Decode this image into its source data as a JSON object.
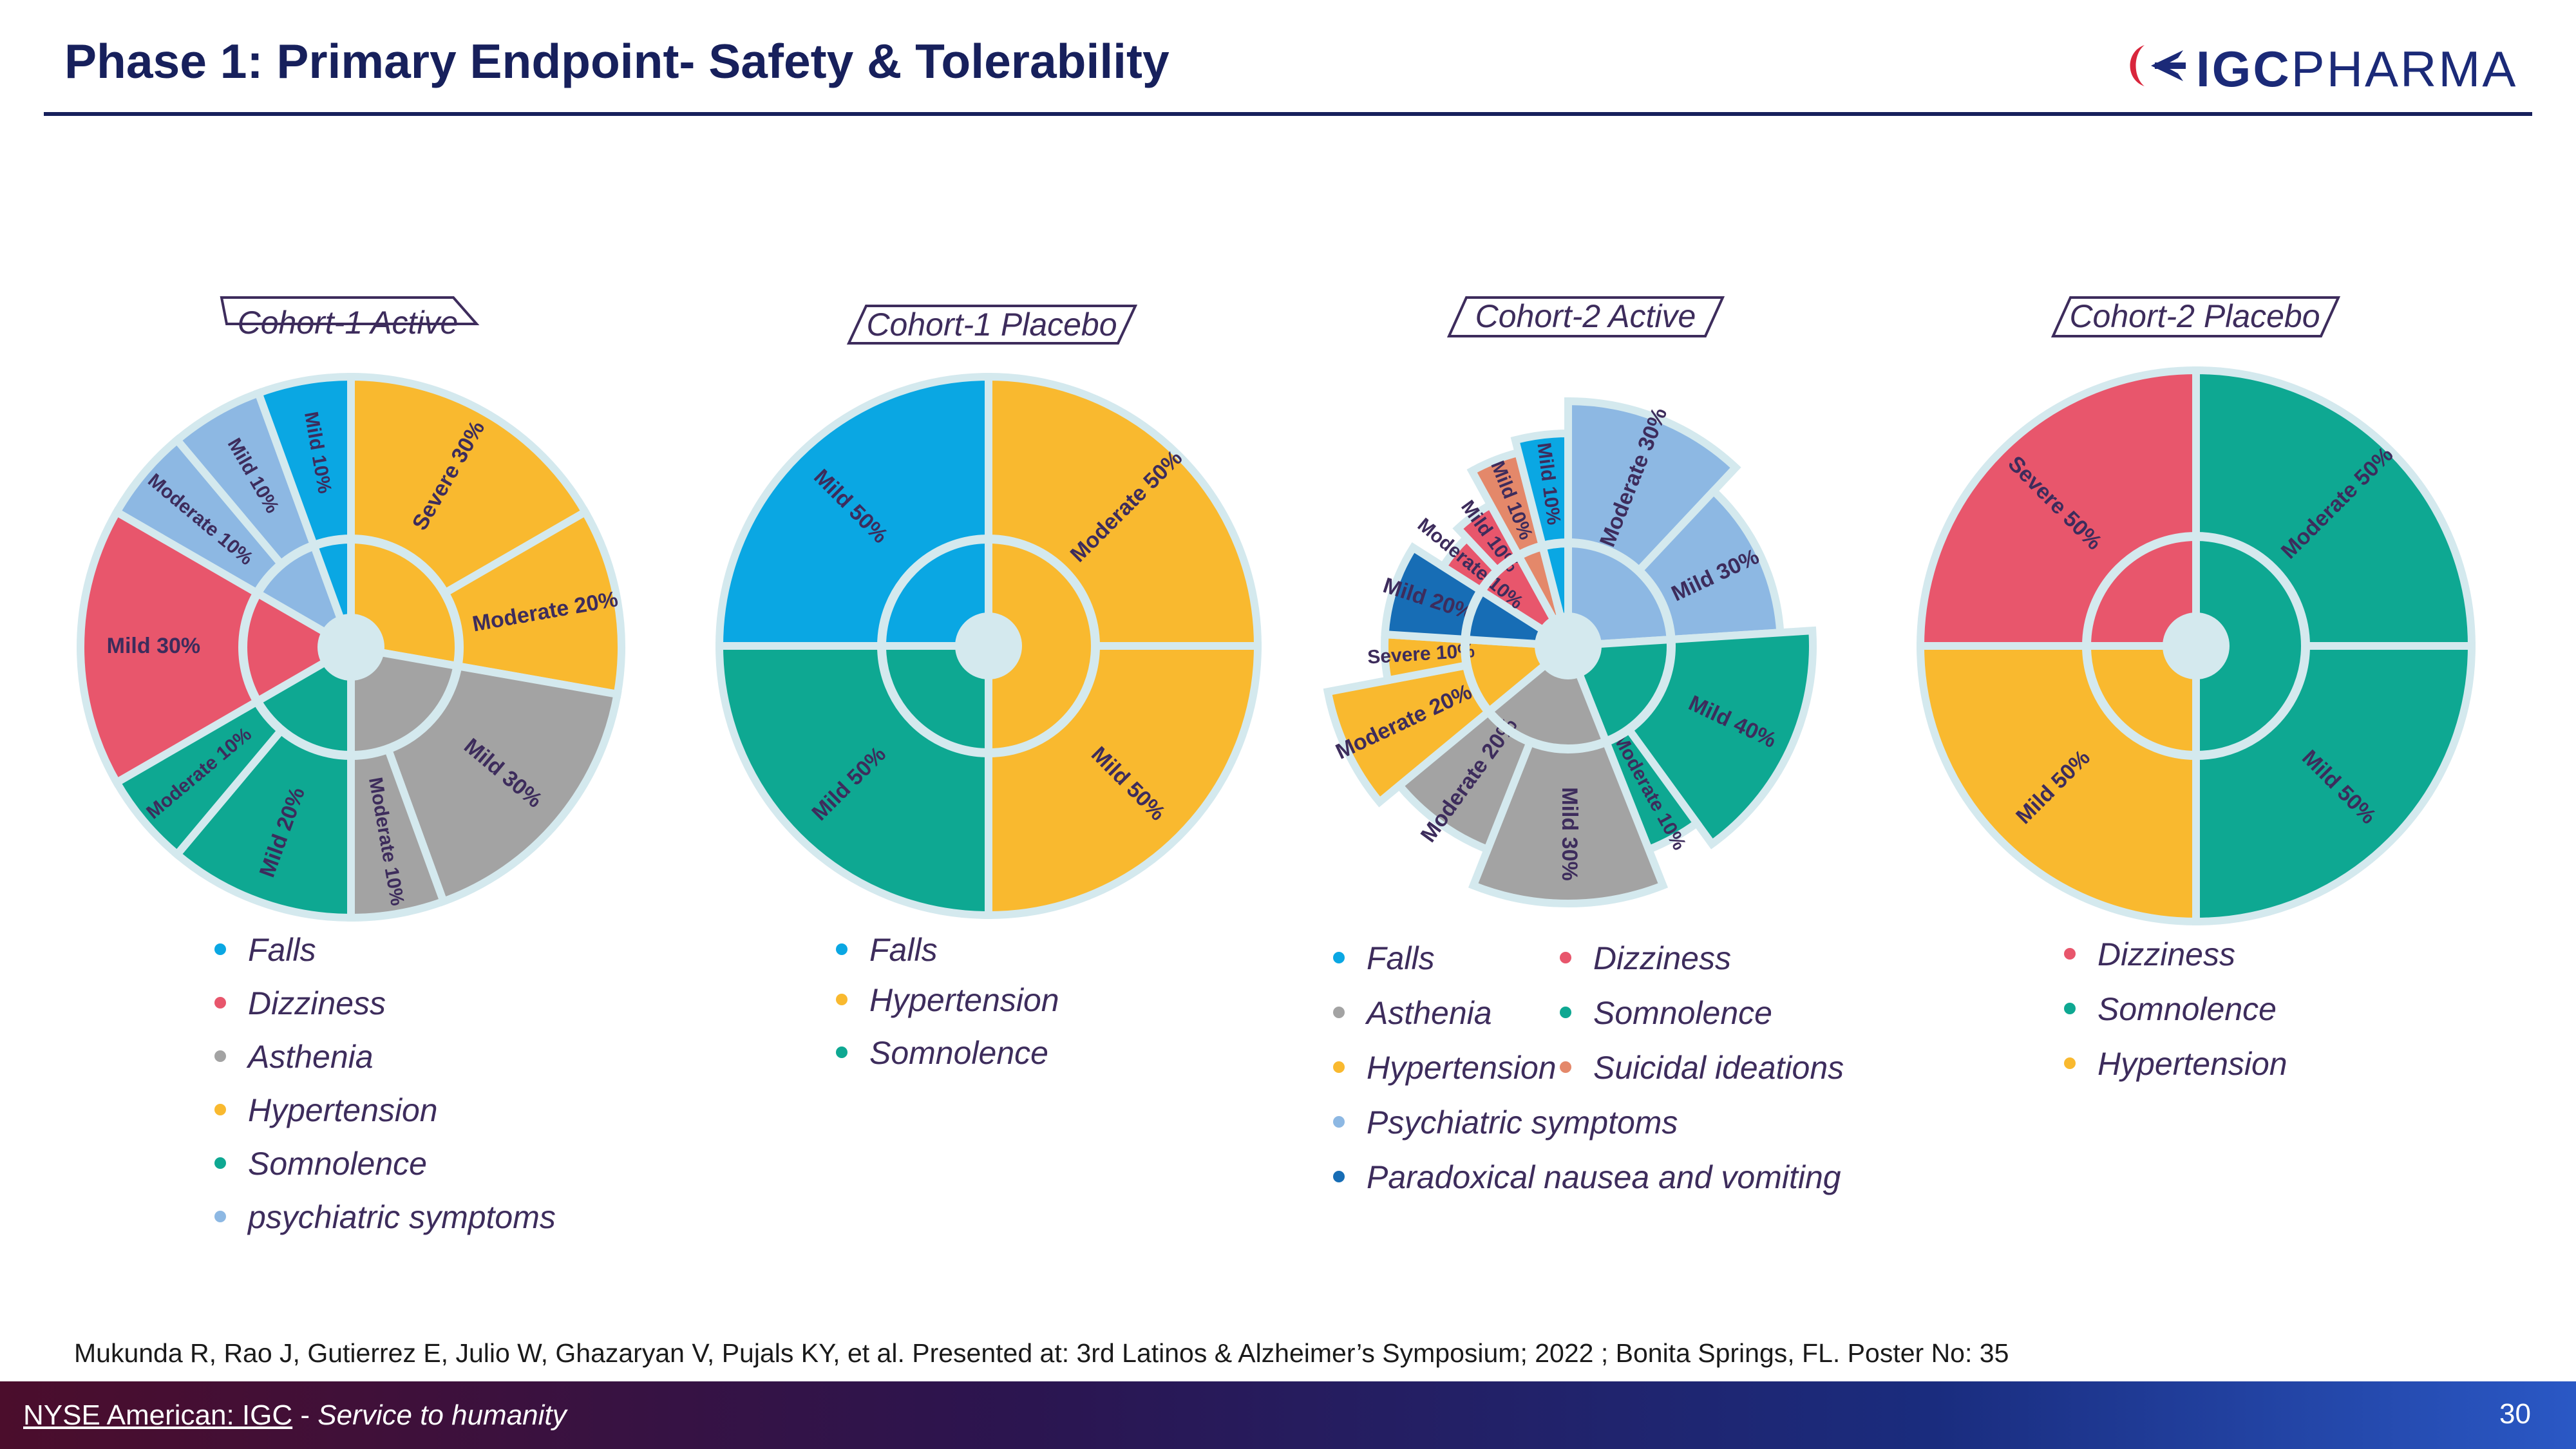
{
  "slide": {
    "title": "Phase 1: Primary Endpoint- Safety & Tolerability",
    "logo": {
      "brand_bold": "IGC",
      "brand_rest": "PHARMA"
    },
    "citation": "Mukunda R, Rao J, Gutierrez E, Julio W, Ghazaryan V, Pujals KY, et al. Presented at: 3rd Latinos & Alzheimer’s Symposium; 2022 ; Bonita Springs, FL. Poster No: 35",
    "footer": {
      "exchange": "NYSE American:  IGC",
      "separator": " - ",
      "tagline": "Service to humanity",
      "page_number": "30"
    },
    "colors": {
      "Falls": "#0aa7e3",
      "Dizziness": "#e8566c",
      "Asthenia": "#a3a3a3",
      "Hypertension": "#f9b92f",
      "Somnolence": "#0ea892",
      "Psychiatric": "#8db8e3",
      "Suicidal": "#e4886a",
      "Paradoxical": "#176db5"
    }
  },
  "chart_data": [
    {
      "type": "pie",
      "title": "Cohort-1 Active",
      "categories": [
        "Falls",
        "Dizziness",
        "Asthenia",
        "Hypertension",
        "Somnolence",
        "psychiatric symptoms"
      ],
      "outer": [
        {
          "label": "Severe 30%",
          "category": "Hypertension",
          "value": 30
        },
        {
          "label": "Moderate 20%",
          "category": "Hypertension",
          "value": 20
        },
        {
          "label": "Mild 30%",
          "category": "Asthenia",
          "value": 30
        },
        {
          "label": "Moderate 10%",
          "category": "Asthenia",
          "value": 10
        },
        {
          "label": "Mild 20%",
          "category": "Somnolence",
          "value": 20
        },
        {
          "label": "Moderate 10%",
          "category": "Somnolence",
          "value": 10
        },
        {
          "label": "Mild 30%",
          "category": "Dizziness",
          "value": 30
        },
        {
          "label": "Moderate 10%",
          "category": "psychiatric symptoms",
          "value": 10
        },
        {
          "label": "Mild 10%",
          "category": "psychiatric symptoms",
          "value": 10
        },
        {
          "label": "Mild 10%",
          "category": "Falls",
          "value": 10
        }
      ]
    },
    {
      "type": "pie",
      "title": "Cohort-1 Placebo",
      "categories": [
        "Falls",
        "Hypertension",
        "Somnolence"
      ],
      "outer": [
        {
          "label": "Moderate 50%",
          "category": "Hypertension",
          "value": 50
        },
        {
          "label": "Mild 50%",
          "category": "Hypertension",
          "value": 50
        },
        {
          "label": "Mild 50%",
          "category": "Somnolence",
          "value": 50
        },
        {
          "label": "Mild 50%",
          "category": "Falls",
          "value": 50
        }
      ]
    },
    {
      "type": "pie",
      "title": "Cohort-2 Active",
      "categories": [
        "Falls",
        "Dizziness",
        "Asthenia",
        "Somnolence",
        "Hypertension",
        "Suicidal ideations",
        "Psychiatric symptoms",
        "Paradoxical nausea and vomiting"
      ],
      "outer": [
        {
          "label": "Moderate 30%",
          "category": "Psychiatric symptoms",
          "value": 30
        },
        {
          "label": "Mild 30%",
          "category": "Psychiatric symptoms",
          "value": 30
        },
        {
          "label": "Mild 40%",
          "category": "Somnolence",
          "value": 40
        },
        {
          "label": "Moderate 10%",
          "category": "Somnolence",
          "value": 10
        },
        {
          "label": "Mild 30%",
          "category": "Asthenia",
          "value": 30
        },
        {
          "label": "Moderate 20%",
          "category": "Asthenia",
          "value": 20
        },
        {
          "label": "Moderate 20%",
          "category": "Hypertension",
          "value": 20
        },
        {
          "label": "Severe 10%",
          "category": "Hypertension",
          "value": 10
        },
        {
          "label": "Mild 20%",
          "category": "Paradoxical nausea and vomiting",
          "value": 20
        },
        {
          "label": "Moderate 10%",
          "category": "Dizziness",
          "value": 10
        },
        {
          "label": "Mild 10%",
          "category": "Dizziness",
          "value": 10
        },
        {
          "label": "Mild 10%",
          "category": "Suicidal ideations",
          "value": 10
        },
        {
          "label": "Mild 10%",
          "category": "Falls",
          "value": 10
        }
      ]
    },
    {
      "type": "pie",
      "title": "Cohort-2 Placebo",
      "categories": [
        "Dizziness",
        "Somnolence",
        "Hypertension"
      ],
      "outer": [
        {
          "label": "Moderate 50%",
          "category": "Somnolence",
          "value": 50
        },
        {
          "label": "Mild 50%",
          "category": "Somnolence",
          "value": 50
        },
        {
          "label": "Mild 50%",
          "category": "Hypertension",
          "value": 50
        },
        {
          "label": "Severe 50%",
          "category": "Dizziness",
          "value": 50
        }
      ]
    }
  ]
}
